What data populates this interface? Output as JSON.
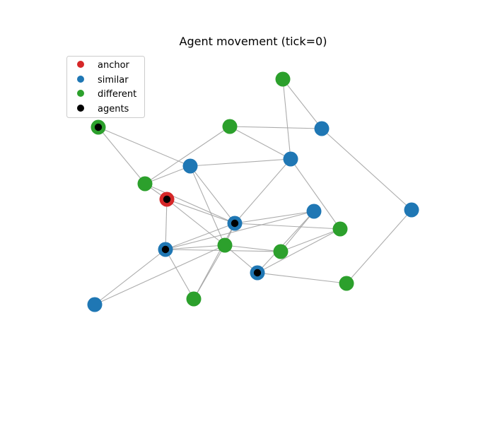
{
  "title": "Agent movement (tick=0)",
  "colors": {
    "anchor": "#d62728",
    "similar": "#1f77b4",
    "different": "#2ca02c",
    "agents": "#000000",
    "edge": "#9e9e9e"
  },
  "legend": [
    {
      "label": "anchor",
      "key": "anchor"
    },
    {
      "label": "similar",
      "key": "similar"
    },
    {
      "label": "different",
      "key": "different"
    },
    {
      "label": "agents",
      "key": "agents"
    }
  ],
  "nodes": [
    {
      "id": "n1",
      "type": "different",
      "agent": false
    },
    {
      "id": "n2",
      "type": "different",
      "agent": true
    },
    {
      "id": "n3",
      "type": "different",
      "agent": false
    },
    {
      "id": "n4",
      "type": "similar",
      "agent": false
    },
    {
      "id": "n5",
      "type": "similar",
      "agent": false
    },
    {
      "id": "n6",
      "type": "similar",
      "agent": false
    },
    {
      "id": "n7",
      "type": "different",
      "agent": false
    },
    {
      "id": "n8",
      "type": "anchor",
      "agent": true
    },
    {
      "id": "n9",
      "type": "similar",
      "agent": false
    },
    {
      "id": "n10",
      "type": "similar",
      "agent": true
    },
    {
      "id": "n11",
      "type": "different",
      "agent": false
    },
    {
      "id": "n12",
      "type": "similar",
      "agent": true
    },
    {
      "id": "n13",
      "type": "different",
      "agent": false
    },
    {
      "id": "n14",
      "type": "different",
      "agent": false
    },
    {
      "id": "n15",
      "type": "similar",
      "agent": true
    },
    {
      "id": "n16",
      "type": "different",
      "agent": false
    },
    {
      "id": "n17",
      "type": "similar",
      "agent": false
    },
    {
      "id": "n18",
      "type": "different",
      "agent": false
    },
    {
      "id": "n19",
      "type": "similar",
      "agent": false
    }
  ],
  "edges": [
    [
      "n1",
      "n4"
    ],
    [
      "n1",
      "n6"
    ],
    [
      "n3",
      "n4"
    ],
    [
      "n3",
      "n6"
    ],
    [
      "n4",
      "n17"
    ],
    [
      "n2",
      "n5"
    ],
    [
      "n2",
      "n7"
    ],
    [
      "n3",
      "n7"
    ],
    [
      "n5",
      "n6"
    ],
    [
      "n5",
      "n7"
    ],
    [
      "n7",
      "n8"
    ],
    [
      "n7",
      "n10"
    ],
    [
      "n8",
      "n10"
    ],
    [
      "n8",
      "n13"
    ],
    [
      "n8",
      "n12"
    ],
    [
      "n5",
      "n10"
    ],
    [
      "n5",
      "n13"
    ],
    [
      "n6",
      "n10"
    ],
    [
      "n6",
      "n11"
    ],
    [
      "n10",
      "n9"
    ],
    [
      "n10",
      "n11"
    ],
    [
      "n10",
      "n12"
    ],
    [
      "n10",
      "n13"
    ],
    [
      "n9",
      "n12"
    ],
    [
      "n9",
      "n14"
    ],
    [
      "n11",
      "n15"
    ],
    [
      "n12",
      "n13"
    ],
    [
      "n12",
      "n14"
    ],
    [
      "n13",
      "n14"
    ],
    [
      "n13",
      "n15"
    ],
    [
      "n13",
      "n16"
    ],
    [
      "n13",
      "n19"
    ],
    [
      "n12",
      "n19"
    ],
    [
      "n15",
      "n9"
    ],
    [
      "n15",
      "n18"
    ],
    [
      "n17",
      "n18"
    ],
    [
      "n16",
      "n12"
    ],
    [
      "n11",
      "n14"
    ],
    [
      "n16",
      "n10"
    ]
  ]
}
